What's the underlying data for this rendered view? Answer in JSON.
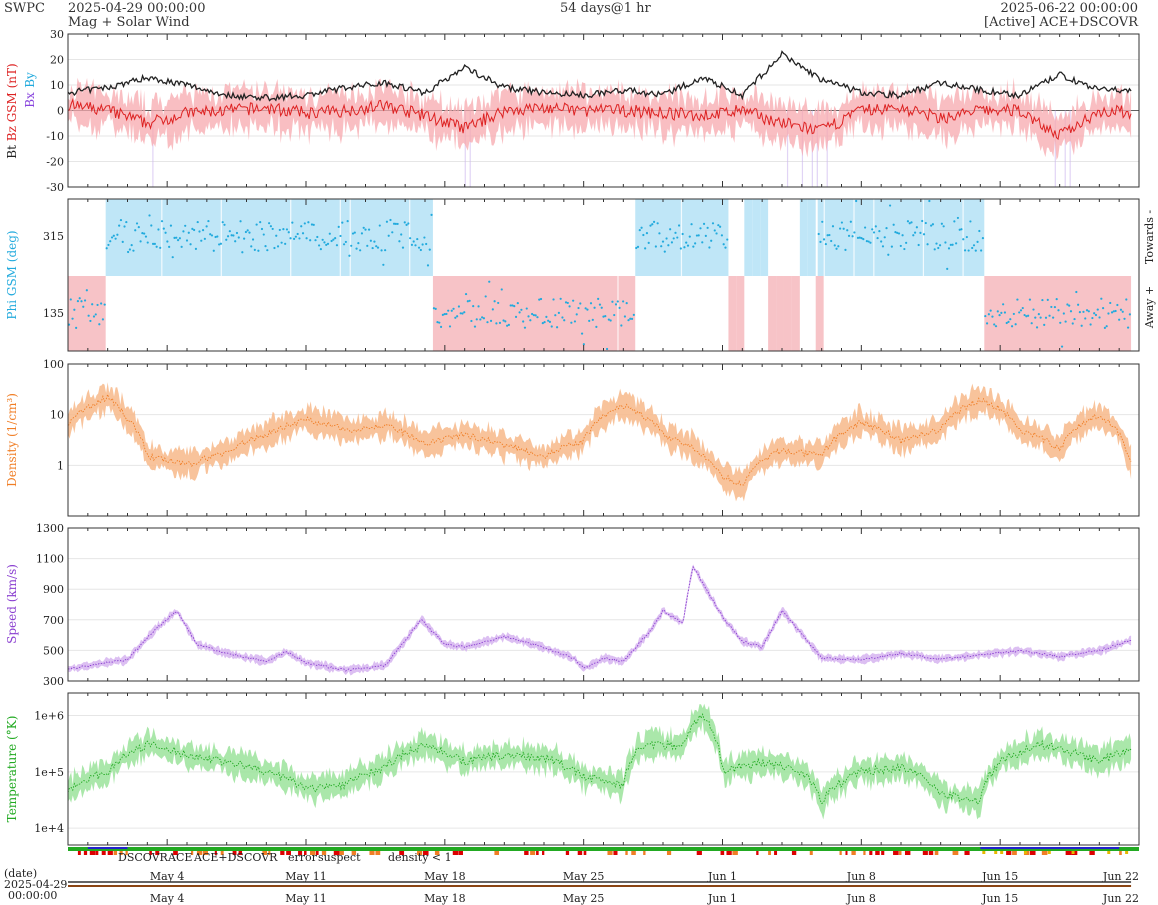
{
  "header": {
    "org": "SWPC",
    "start": "2025-04-29 00:00:00",
    "end": "2025-06-22 00:00:00",
    "subtitle": "Mag + Solar Wind",
    "span": "54 days@1 hr",
    "source": "[Active] ACE+DSCOVR"
  },
  "colors": {
    "bt": "#222222",
    "bz": "#dd2222",
    "bx": "#8844dd",
    "by": "#22aadd",
    "phi": "#22aadd",
    "towards": "#bfe6f7",
    "away": "#f7c3c7",
    "density": "#f07e26",
    "density_band": "#f7b98a",
    "speed": "#8a3fd0",
    "speed_band": "#d6b4f0",
    "temp": "#22aa22",
    "temp_band": "#9be39b",
    "dscovr": "#2222cc",
    "ace": "#22aa22",
    "both": "#ee22ee",
    "error": "#dd0000",
    "suspect": "#e6b800",
    "lowdens": "#f07e26"
  },
  "chart_data": [
    {
      "type": "line",
      "panel": "mag",
      "ylabel_parts": [
        "Bt",
        "Bz GSM (nT)",
        "Bx",
        "By"
      ],
      "ylim": [
        -30,
        30
      ],
      "yticks": [
        -30,
        -20,
        -10,
        0,
        10,
        20,
        30
      ],
      "x_days": [
        0,
        2,
        4,
        6,
        8,
        10,
        12,
        14,
        16,
        18,
        20,
        22,
        24,
        26,
        28,
        30,
        32,
        34,
        36,
        38,
        40,
        42,
        44,
        46,
        48,
        50,
        52,
        54
      ],
      "series": [
        {
          "name": "Bt",
          "values": [
            7,
            9,
            13,
            10,
            6,
            5,
            6,
            9,
            11,
            7,
            17,
            9,
            7,
            6,
            8,
            6,
            13,
            6,
            22,
            12,
            7,
            6,
            11,
            8,
            6,
            14,
            8,
            8
          ]
        },
        {
          "name": "Bz",
          "values": [
            2,
            0,
            -5,
            -1,
            0,
            1,
            -1,
            0,
            2,
            -2,
            -7,
            0,
            1,
            0,
            0,
            -1,
            -2,
            0,
            -5,
            -8,
            0,
            1,
            -3,
            0,
            0,
            -10,
            0,
            -1
          ]
        }
      ]
    },
    {
      "type": "scatter",
      "panel": "phi",
      "ylabel": "Phi GSM (deg)",
      "yticks": [
        135,
        315
      ],
      "side_labels": [
        "Towards -",
        "Away +"
      ],
      "sectors": [
        {
          "start": 0,
          "end": 1.9,
          "polarity": "away"
        },
        {
          "start": 1.9,
          "end": 18.4,
          "polarity": "towards"
        },
        {
          "start": 18.4,
          "end": 28.6,
          "polarity": "away"
        },
        {
          "start": 28.6,
          "end": 33.3,
          "polarity": "towards"
        },
        {
          "start": 33.3,
          "end": 37.8,
          "polarity": "mixed"
        },
        {
          "start": 37.8,
          "end": 46.2,
          "polarity": "towards"
        },
        {
          "start": 46.2,
          "end": 53.6,
          "polarity": "away"
        }
      ]
    },
    {
      "type": "line",
      "panel": "density",
      "ylabel": "Density (1/cm³)",
      "yscale": "log",
      "yticks": [
        1,
        10,
        100
      ],
      "x_days": [
        0,
        2,
        3,
        4,
        6,
        8,
        10,
        12,
        14,
        16,
        18,
        20,
        22,
        24,
        26,
        28,
        30,
        32,
        33,
        34,
        36,
        38,
        40,
        42,
        44,
        46,
        48,
        50,
        52,
        53.5
      ],
      "values": [
        6,
        22,
        8,
        1.5,
        1.0,
        1.8,
        4,
        8,
        5,
        6,
        2.5,
        4,
        2.5,
        1.5,
        3,
        15,
        4,
        1.5,
        0.6,
        0.4,
        2,
        1.5,
        7,
        3,
        5,
        20,
        5,
        2,
        10,
        1.2
      ]
    },
    {
      "type": "line",
      "panel": "speed",
      "ylabel": "Speed (km/s)",
      "ylim": [
        300,
        1300
      ],
      "yticks": [
        300,
        500,
        700,
        900,
        1100,
        1300
      ],
      "x_days": [
        0,
        2,
        3,
        4.5,
        5.5,
        6.5,
        8,
        10,
        11,
        12,
        14,
        16,
        17.8,
        19,
        20,
        22,
        24,
        25.5,
        26,
        27,
        28,
        29.5,
        30,
        31,
        31.5,
        33,
        34,
        35,
        36,
        38,
        40,
        42,
        44,
        46,
        48,
        50,
        52,
        53.5
      ],
      "values": [
        380,
        420,
        440,
        650,
        760,
        540,
        480,
        430,
        490,
        420,
        370,
        400,
        700,
        540,
        520,
        590,
        520,
        450,
        380,
        450,
        430,
        650,
        760,
        680,
        1050,
        720,
        560,
        520,
        760,
        450,
        440,
        480,
        440,
        470,
        500,
        460,
        500,
        560
      ]
    },
    {
      "type": "line",
      "panel": "temperature",
      "ylabel": "Temperature (°K)",
      "yscale": "log",
      "yticks": [
        "1e+4",
        "1e+5",
        "1e+6"
      ],
      "x_days": [
        0,
        2,
        4,
        6,
        8,
        10,
        12,
        14,
        16,
        18,
        20,
        22,
        24,
        26,
        28,
        29,
        31,
        32,
        33,
        35,
        37,
        38,
        40,
        42,
        44,
        46,
        47,
        49,
        52,
        53.5
      ],
      "values": [
        50000,
        100000,
        300000,
        200000,
        150000,
        100000,
        50000,
        60000,
        120000,
        300000,
        150000,
        200000,
        180000,
        80000,
        60000,
        300000,
        300000,
        1000000,
        100000,
        150000,
        100000,
        30000,
        100000,
        120000,
        40000,
        30000,
        150000,
        300000,
        150000,
        250000
      ]
    }
  ],
  "legend": {
    "dscovr": "DSCOVR",
    "ace": "ACE",
    "both": "ACE+DSCOVR",
    "error": "error",
    "suspect": "suspect",
    "lowdens": "density < 1"
  },
  "xaxis": {
    "date_label": "(date)",
    "start_label": "2025-04-29",
    "start_time": "00:00:00",
    "ticks": [
      {
        "day": 5,
        "label": "May 4"
      },
      {
        "day": 12,
        "label": "May 11"
      },
      {
        "day": 19,
        "label": "May 18"
      },
      {
        "day": 26,
        "label": "May 25"
      },
      {
        "day": 33,
        "label": "Jun 1"
      },
      {
        "day": 40,
        "label": "Jun 8"
      },
      {
        "day": 47,
        "label": "Jun 15"
      },
      {
        "day": 54,
        "label": "Jun 22"
      }
    ]
  }
}
